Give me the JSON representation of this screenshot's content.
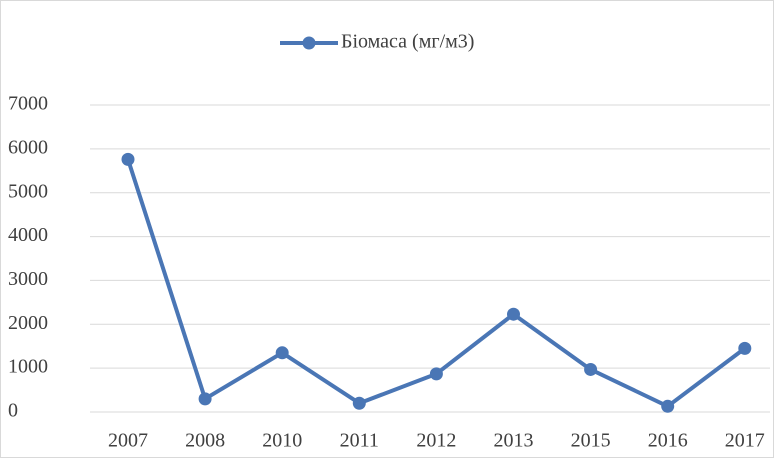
{
  "chart_data": {
    "type": "line",
    "categories": [
      "2007",
      "2008",
      "2010",
      "2011",
      "2012",
      "2013",
      "2015",
      "2016",
      "2017"
    ],
    "series": [
      {
        "name": "Біомаса (мг/м3)",
        "color": "#4a76b5",
        "values": [
          5760,
          300,
          1350,
          200,
          870,
          2230,
          970,
          130,
          1450
        ]
      }
    ],
    "ylim": [
      0,
      7000
    ],
    "yticks": [
      0,
      1000,
      2000,
      3000,
      4000,
      5000,
      6000,
      7000
    ],
    "grid": true,
    "legend": "top"
  }
}
